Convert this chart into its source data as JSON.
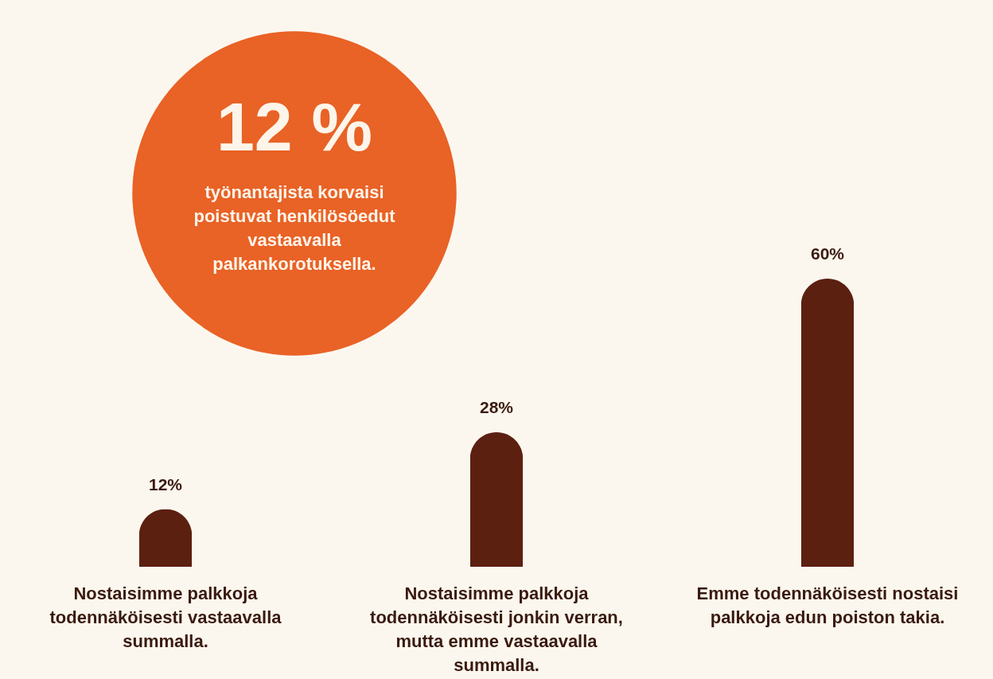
{
  "chart_data": {
    "type": "bar",
    "categories": [
      "Nostaisimme palkkoja todennäköisesti vastaavalla summalla.",
      "Nostaisimme palkkoja todennäköisesti jonkin verran, mutta emme vastaavalla summalla.",
      "Emme todennäköisesti nostaisi palkkoja edun poiston takia."
    ],
    "values": [
      12,
      28,
      60
    ],
    "value_labels": [
      "12%",
      "28%",
      "60%"
    ],
    "color": "#5c2011",
    "annotations": [
      "12 %",
      "työnantajista korvaisi poistuvat henkilösöedut vastaavalla palkankorotuksella."
    ]
  }
}
